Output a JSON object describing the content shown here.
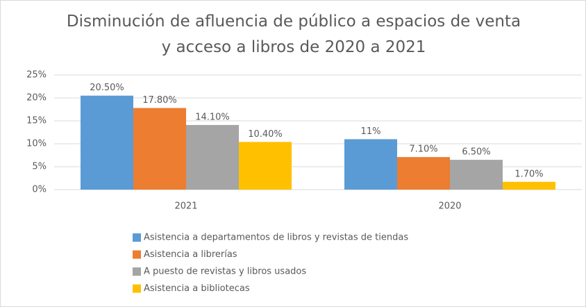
{
  "chart_data": {
    "type": "bar",
    "title": "Disminución de afluencia de público a espacios de venta y acceso a libros de 2020 a 2021",
    "categories": [
      "2021",
      "2020"
    ],
    "series": [
      {
        "name": "Asistencia a departamentos de libros y revistas de tiendas",
        "color": "#5b9bd5",
        "values": [
          20.5,
          11
        ],
        "value_labels": [
          "20.50%",
          "11%"
        ]
      },
      {
        "name": "Asistencia a librerías",
        "color": "#ed7d31",
        "values": [
          17.8,
          7.1
        ],
        "value_labels": [
          "17.80%",
          "7.10%"
        ]
      },
      {
        "name": "A puesto de revistas y libros usados",
        "color": "#a5a5a5",
        "values": [
          14.1,
          6.5
        ],
        "value_labels": [
          "14.10%",
          "6.50%"
        ]
      },
      {
        "name": "Asistencia a bibliotecas",
        "color": "#ffc000",
        "values": [
          10.4,
          1.7
        ],
        "value_labels": [
          "10.40%",
          "1.70%"
        ]
      }
    ],
    "ylim": [
      0,
      25
    ],
    "yticks": [
      {
        "value": 0,
        "label": "0%"
      },
      {
        "value": 5,
        "label": "5%"
      },
      {
        "value": 10,
        "label": "10%"
      },
      {
        "value": 15,
        "label": "15%"
      },
      {
        "value": 20,
        "label": "20%"
      },
      {
        "value": 25,
        "label": "25%"
      }
    ],
    "grid": true,
    "legend": "bottom"
  }
}
